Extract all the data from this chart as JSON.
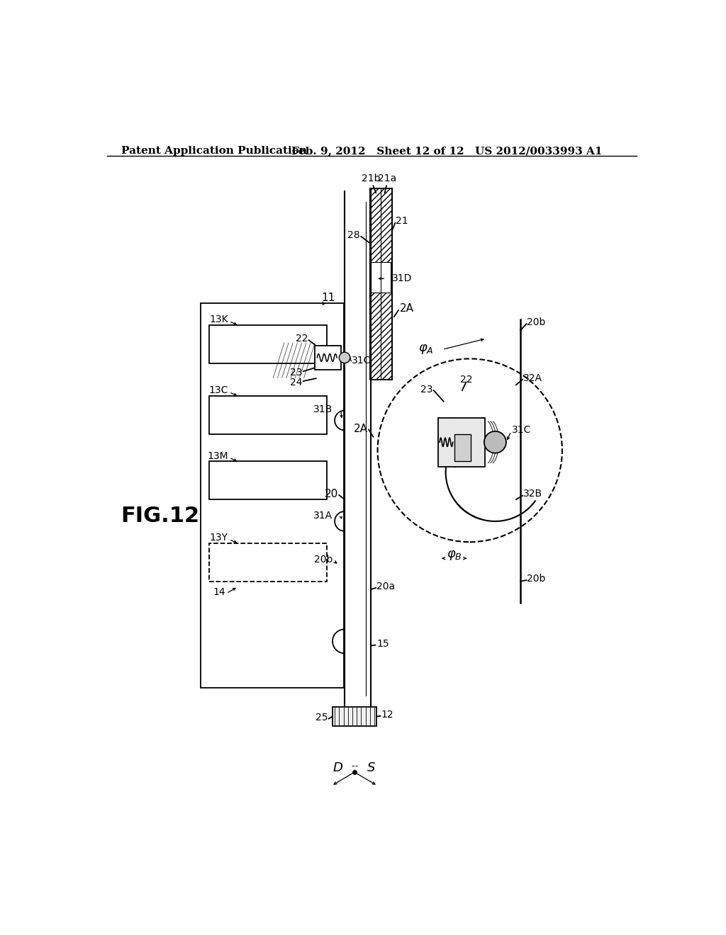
{
  "header_left": "Patent Application Publication",
  "header_center": "Feb. 9, 2012   Sheet 12 of 12",
  "header_right": "US 2012/0033993 A1",
  "fig_label": "FIG.12",
  "bg_color": "#ffffff",
  "line_color": "#000000"
}
